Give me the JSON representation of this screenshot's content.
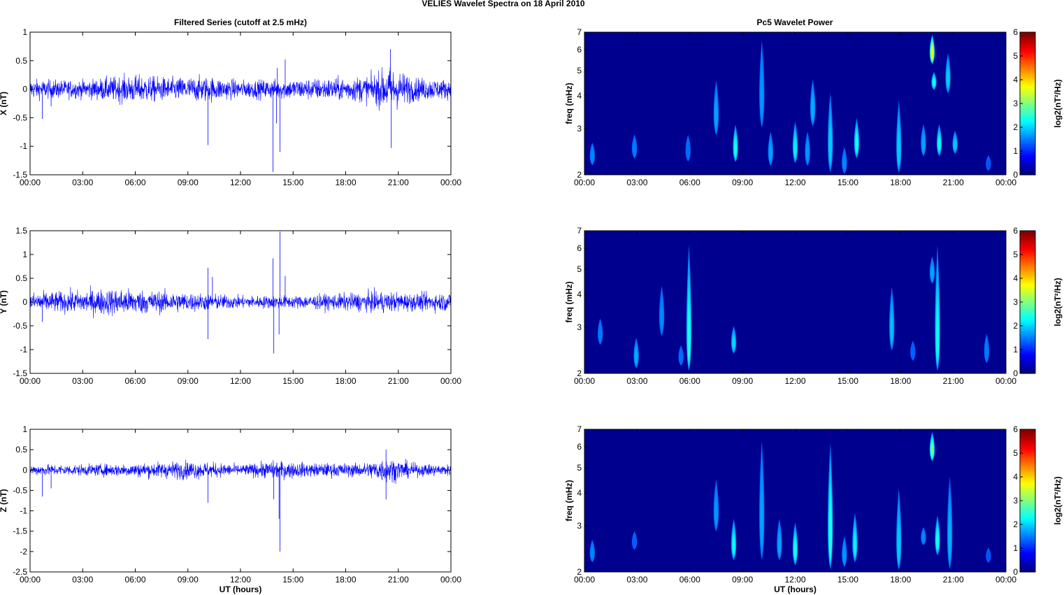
{
  "figure": {
    "title": "VELIES Wavelet Spectra on 18 April     2010",
    "left_column_title": "Filtered Series (cutoff at 2.5 mHz)",
    "right_column_title": "Pc5 Wavelet Power"
  },
  "chart_data": [
    {
      "type": "line",
      "component": "X",
      "ylabel": "X (nT)",
      "xlabel": "",
      "ylim": [
        -1.5,
        1
      ],
      "yticks": [
        -1.5,
        -1,
        -0.5,
        0,
        0.5,
        1
      ],
      "xlim_hours": [
        0,
        24
      ],
      "xticks": [
        "00:00",
        "03:00",
        "06:00",
        "09:00",
        "12:00",
        "15:00",
        "18:00",
        "21:00",
        "00:00"
      ],
      "line_color": "#0000ff",
      "noise_envelope": [
        {
          "t": 0,
          "a": 0.15
        },
        {
          "t": 3,
          "a": 0.14
        },
        {
          "t": 5,
          "a": 0.2
        },
        {
          "t": 6,
          "a": 0.22
        },
        {
          "t": 8,
          "a": 0.18
        },
        {
          "t": 10,
          "a": 0.2
        },
        {
          "t": 12,
          "a": 0.14
        },
        {
          "t": 15,
          "a": 0.16
        },
        {
          "t": 18,
          "a": 0.18
        },
        {
          "t": 19.5,
          "a": 0.22
        },
        {
          "t": 20.5,
          "a": 0.35
        },
        {
          "t": 22,
          "a": 0.18
        },
        {
          "t": 24,
          "a": 0.15
        }
      ],
      "spikes": [
        {
          "t": 10.15,
          "v": -0.98
        },
        {
          "t": 13.85,
          "v": -1.45
        },
        {
          "t": 14.05,
          "v": -0.6
        },
        {
          "t": 14.25,
          "v": -1.1
        },
        {
          "t": 14.1,
          "v": 0.37
        },
        {
          "t": 14.55,
          "v": 0.52
        },
        {
          "t": 20.6,
          "v": -1.03
        },
        {
          "t": 20.55,
          "v": 0.7
        },
        {
          "t": 0.7,
          "v": -0.52
        },
        {
          "t": 1.2,
          "v": -0.3
        }
      ]
    },
    {
      "type": "line",
      "component": "Y",
      "ylabel": "Y (nT)",
      "xlabel": "",
      "ylim": [
        -1.5,
        1.5
      ],
      "yticks": [
        -1.5,
        -1,
        -0.5,
        0,
        0.5,
        1,
        1.5
      ],
      "xlim_hours": [
        0,
        24
      ],
      "xticks": [
        "00:00",
        "03:00",
        "06:00",
        "09:00",
        "12:00",
        "15:00",
        "18:00",
        "21:00",
        "00:00"
      ],
      "line_color": "#0000ff",
      "noise_envelope": [
        {
          "t": 0,
          "a": 0.18
        },
        {
          "t": 2,
          "a": 0.2
        },
        {
          "t": 5,
          "a": 0.26
        },
        {
          "t": 6.5,
          "a": 0.22
        },
        {
          "t": 9,
          "a": 0.18
        },
        {
          "t": 12,
          "a": 0.12
        },
        {
          "t": 15,
          "a": 0.12
        },
        {
          "t": 18,
          "a": 0.16
        },
        {
          "t": 20,
          "a": 0.2
        },
        {
          "t": 22,
          "a": 0.16
        },
        {
          "t": 24,
          "a": 0.18
        }
      ],
      "spikes": [
        {
          "t": 10.15,
          "v": 0.72
        },
        {
          "t": 10.15,
          "v": -0.78
        },
        {
          "t": 10.4,
          "v": 0.53
        },
        {
          "t": 13.85,
          "v": 0.92
        },
        {
          "t": 13.9,
          "v": -1.08
        },
        {
          "t": 14.25,
          "v": 1.48
        },
        {
          "t": 14.2,
          "v": -0.68
        },
        {
          "t": 14.55,
          "v": 0.55
        },
        {
          "t": 0.7,
          "v": -0.42
        },
        {
          "t": 24,
          "v": 0.3
        }
      ]
    },
    {
      "type": "line",
      "component": "Z",
      "ylabel": "Z (nT)",
      "xlabel": "UT (hours)",
      "ylim": [
        -2.5,
        1
      ],
      "yticks": [
        -2.5,
        -2,
        -1.5,
        -1,
        -0.5,
        0,
        0.5,
        1
      ],
      "xlim_hours": [
        0,
        24
      ],
      "xticks": [
        "00:00",
        "03:00",
        "06:00",
        "09:00",
        "12:00",
        "15:00",
        "18:00",
        "21:00",
        "00:00"
      ],
      "line_color": "#0000ff",
      "noise_envelope": [
        {
          "t": 0,
          "a": 0.12
        },
        {
          "t": 3,
          "a": 0.12
        },
        {
          "t": 6,
          "a": 0.15
        },
        {
          "t": 9,
          "a": 0.2
        },
        {
          "t": 12,
          "a": 0.12
        },
        {
          "t": 14,
          "a": 0.2
        },
        {
          "t": 16,
          "a": 0.15
        },
        {
          "t": 19,
          "a": 0.15
        },
        {
          "t": 20.3,
          "a": 0.28
        },
        {
          "t": 22,
          "a": 0.14
        },
        {
          "t": 24,
          "a": 0.12
        }
      ],
      "spikes": [
        {
          "t": 0.7,
          "v": -0.65
        },
        {
          "t": 1.2,
          "v": -0.45
        },
        {
          "t": 10.15,
          "v": -0.8
        },
        {
          "t": 13.9,
          "v": -0.72
        },
        {
          "t": 14.25,
          "v": -2.0
        },
        {
          "t": 14.2,
          "v": -1.2
        },
        {
          "t": 20.3,
          "v": -0.72
        },
        {
          "t": 20.3,
          "v": 0.5
        }
      ]
    },
    {
      "type": "heatmap",
      "component": "X",
      "ylabel": "freq (mHz)",
      "xlabel": "",
      "yscale": "log",
      "ylim_mHz": [
        2,
        7
      ],
      "yticks": [
        2,
        3,
        4,
        5,
        6,
        7
      ],
      "xlim_hours": [
        0,
        24
      ],
      "xticks": [
        "00:00",
        "03:00",
        "06:00",
        "09:00",
        "12:00",
        "15:00",
        "18:00",
        "21:00",
        "00:00"
      ],
      "colorbar": {
        "label": "log2(nT²/Hz)",
        "ticks": [
          0,
          1,
          2,
          3,
          4,
          5,
          6
        ],
        "colormap": "jet"
      },
      "blobs": [
        {
          "t": 0.45,
          "f": 2.35,
          "p": 1.0,
          "fh": 2.7
        },
        {
          "t": 2.85,
          "f": 2.5,
          "p": 0.9,
          "fh": 2.9
        },
        {
          "t": 5.9,
          "f": 2.45,
          "p": 0.8,
          "fh": 2.9
        },
        {
          "t": 7.5,
          "f": 3.3,
          "p": 1.2,
          "fh": 4.8
        },
        {
          "t": 8.6,
          "f": 2.5,
          "p": 2.0,
          "fh": 3.2
        },
        {
          "t": 10.1,
          "f": 3.8,
          "p": 1.1,
          "fh": 7.0
        },
        {
          "t": 10.6,
          "f": 2.4,
          "p": 1.2,
          "fh": 3.0
        },
        {
          "t": 12.0,
          "f": 2.5,
          "p": 1.8,
          "fh": 3.3
        },
        {
          "t": 12.7,
          "f": 2.4,
          "p": 1.1,
          "fh": 3.0
        },
        {
          "t": 13.0,
          "f": 3.5,
          "p": 1.3,
          "fh": 4.8
        },
        {
          "t": 14.0,
          "f": 2.5,
          "p": 1.5,
          "fh": 4.4
        },
        {
          "t": 14.8,
          "f": 2.2,
          "p": 1.0,
          "fh": 2.6
        },
        {
          "t": 15.5,
          "f": 2.6,
          "p": 2.0,
          "fh": 3.4
        },
        {
          "t": 17.9,
          "f": 2.4,
          "p": 1.5,
          "fh": 4.1
        },
        {
          "t": 19.3,
          "f": 2.6,
          "p": 1.2,
          "fh": 3.2
        },
        {
          "t": 19.8,
          "f": 5.8,
          "p": 3.5,
          "fh": 7.0
        },
        {
          "t": 19.9,
          "f": 4.5,
          "p": 2.0,
          "fh": 5.0
        },
        {
          "t": 20.2,
          "f": 2.6,
          "p": 1.9,
          "fh": 3.2
        },
        {
          "t": 20.7,
          "f": 4.6,
          "p": 1.5,
          "fh": 6.0
        },
        {
          "t": 21.1,
          "f": 2.6,
          "p": 1.5,
          "fh": 3.0
        },
        {
          "t": 23.0,
          "f": 2.2,
          "p": 0.6,
          "fh": 2.4
        }
      ]
    },
    {
      "type": "heatmap",
      "component": "Y",
      "ylabel": "freq (mHz)",
      "xlabel": "",
      "yscale": "log",
      "ylim_mHz": [
        2,
        7
      ],
      "yticks": [
        2,
        3,
        4,
        5,
        6,
        7
      ],
      "xlim_hours": [
        0,
        24
      ],
      "xticks": [
        "00:00",
        "03:00",
        "06:00",
        "09:00",
        "12:00",
        "15:00",
        "18:00",
        "21:00",
        "00:00"
      ],
      "colorbar": {
        "label": "log2(nT²/Hz)",
        "ticks": [
          0,
          1,
          2,
          3,
          4,
          5,
          6
        ],
        "colormap": "jet"
      },
      "blobs": [
        {
          "t": 0.9,
          "f": 2.8,
          "p": 0.9,
          "fh": 3.3
        },
        {
          "t": 2.95,
          "f": 2.3,
          "p": 1.3,
          "fh": 2.8
        },
        {
          "t": 4.4,
          "f": 3.2,
          "p": 1.0,
          "fh": 4.5
        },
        {
          "t": 5.5,
          "f": 2.3,
          "p": 0.8,
          "fh": 2.6
        },
        {
          "t": 5.95,
          "f": 2.5,
          "p": 2.0,
          "fh": 7.0
        },
        {
          "t": 8.5,
          "f": 2.6,
          "p": 1.6,
          "fh": 3.1
        },
        {
          "t": 17.5,
          "f": 2.9,
          "p": 1.4,
          "fh": 4.5
        },
        {
          "t": 18.7,
          "f": 2.4,
          "p": 0.7,
          "fh": 2.7
        },
        {
          "t": 19.8,
          "f": 4.8,
          "p": 1.2,
          "fh": 5.7
        },
        {
          "t": 20.1,
          "f": 2.5,
          "p": 1.9,
          "fh": 7.0
        },
        {
          "t": 22.9,
          "f": 2.4,
          "p": 0.9,
          "fh": 2.9
        }
      ]
    },
    {
      "type": "heatmap",
      "component": "Z",
      "ylabel": "freq (mHz)",
      "xlabel": "UT (hours)",
      "yscale": "log",
      "ylim_mHz": [
        2,
        7
      ],
      "yticks": [
        2,
        3,
        4,
        5,
        6,
        7
      ],
      "xlim_hours": [
        0,
        24
      ],
      "xticks": [
        "00:00",
        "03:00",
        "06:00",
        "09:00",
        "12:00",
        "15:00",
        "18:00",
        "21:00",
        "00:00"
      ],
      "colorbar": {
        "label": "log2(nT²/Hz)",
        "ticks": [
          0,
          1,
          2,
          3,
          4,
          5,
          6
        ],
        "colormap": "jet"
      },
      "blobs": [
        {
          "t": 0.45,
          "f": 2.35,
          "p": 1.0,
          "fh": 2.7
        },
        {
          "t": 2.85,
          "f": 2.6,
          "p": 0.7,
          "fh": 2.9
        },
        {
          "t": 7.5,
          "f": 3.3,
          "p": 1.1,
          "fh": 4.7
        },
        {
          "t": 8.5,
          "f": 2.5,
          "p": 1.9,
          "fh": 3.3
        },
        {
          "t": 10.1,
          "f": 3.0,
          "p": 1.2,
          "fh": 7.0
        },
        {
          "t": 11.1,
          "f": 2.5,
          "p": 1.2,
          "fh": 3.3
        },
        {
          "t": 12.0,
          "f": 2.4,
          "p": 2.0,
          "fh": 3.2
        },
        {
          "t": 14.0,
          "f": 2.6,
          "p": 2.1,
          "fh": 7.0
        },
        {
          "t": 14.8,
          "f": 2.3,
          "p": 1.1,
          "fh": 2.8
        },
        {
          "t": 15.4,
          "f": 2.5,
          "p": 1.8,
          "fh": 3.5
        },
        {
          "t": 17.9,
          "f": 2.4,
          "p": 1.5,
          "fh": 4.5
        },
        {
          "t": 19.3,
          "f": 2.7,
          "p": 1.0,
          "fh": 3.0
        },
        {
          "t": 19.8,
          "f": 5.8,
          "p": 2.6,
          "fh": 7.0
        },
        {
          "t": 20.1,
          "f": 2.6,
          "p": 2.0,
          "fh": 3.4
        },
        {
          "t": 20.8,
          "f": 2.6,
          "p": 1.3,
          "fh": 5.0
        },
        {
          "t": 23.0,
          "f": 2.3,
          "p": 0.6,
          "fh": 2.5
        }
      ]
    }
  ]
}
